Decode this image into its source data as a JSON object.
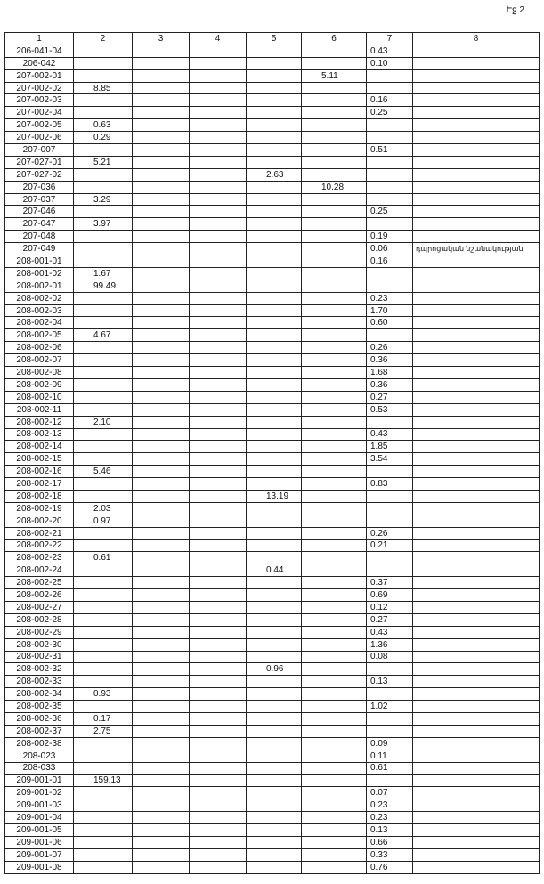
{
  "page_label": "Էջ 2",
  "headers": [
    "1",
    "2",
    "3",
    "4",
    "5",
    "6",
    "7",
    "8"
  ],
  "rows": [
    [
      "206-041-04",
      "",
      "",
      "",
      "",
      "",
      "0.43",
      ""
    ],
    [
      "206-042",
      "",
      "",
      "",
      "",
      "",
      "0.10",
      ""
    ],
    [
      "207-002-01",
      "",
      "",
      "",
      "",
      "5.11",
      "",
      ""
    ],
    [
      "207-002-02",
      "8.85",
      "",
      "",
      "",
      "",
      "",
      ""
    ],
    [
      "207-002-03",
      "",
      "",
      "",
      "",
      "",
      "0.16",
      ""
    ],
    [
      "207-002-04",
      "",
      "",
      "",
      "",
      "",
      "0.25",
      ""
    ],
    [
      "207-002-05",
      "0.63",
      "",
      "",
      "",
      "",
      "",
      ""
    ],
    [
      "207-002-06",
      "0.29",
      "",
      "",
      "",
      "",
      "",
      ""
    ],
    [
      "207-007",
      "",
      "",
      "",
      "",
      "",
      "0.51",
      ""
    ],
    [
      "207-027-01",
      "5.21",
      "",
      "",
      "",
      "",
      "",
      ""
    ],
    [
      "207-027-02",
      "",
      "",
      "",
      "2.63",
      "",
      "",
      ""
    ],
    [
      "207-036",
      "",
      "",
      "",
      "",
      "10.28",
      "",
      ""
    ],
    [
      "207-037",
      "3.29",
      "",
      "",
      "",
      "",
      "",
      ""
    ],
    [
      "207-046",
      "",
      "",
      "",
      "",
      "",
      "0.25",
      ""
    ],
    [
      "207-047",
      "3.97",
      "",
      "",
      "",
      "",
      "",
      ""
    ],
    [
      "207-048",
      "",
      "",
      "",
      "",
      "",
      "0.19",
      ""
    ],
    [
      "207-049",
      "",
      "",
      "",
      "",
      "",
      "0.06",
      "դպրոցական նշանակության"
    ],
    [
      "208-001-01",
      "",
      "",
      "",
      "",
      "",
      "0.16",
      ""
    ],
    [
      "208-001-02",
      "1.67",
      "",
      "",
      "",
      "",
      "",
      ""
    ],
    [
      "208-002-01",
      "99.49",
      "",
      "",
      "",
      "",
      "",
      ""
    ],
    [
      "208-002-02",
      "",
      "",
      "",
      "",
      "",
      "0.23",
      ""
    ],
    [
      "208-002-03",
      "",
      "",
      "",
      "",
      "",
      "1.70",
      ""
    ],
    [
      "208-002-04",
      "",
      "",
      "",
      "",
      "",
      "0.60",
      ""
    ],
    [
      "208-002-05",
      "4.67",
      "",
      "",
      "",
      "",
      "",
      ""
    ],
    [
      "208-002-06",
      "",
      "",
      "",
      "",
      "",
      "0.26",
      ""
    ],
    [
      "208-002-07",
      "",
      "",
      "",
      "",
      "",
      "0.36",
      ""
    ],
    [
      "208-002-08",
      "",
      "",
      "",
      "",
      "",
      "1.68",
      ""
    ],
    [
      "208-002-09",
      "",
      "",
      "",
      "",
      "",
      "0.36",
      ""
    ],
    [
      "208-002-10",
      "",
      "",
      "",
      "",
      "",
      "0.27",
      ""
    ],
    [
      "208-002-11",
      "",
      "",
      "",
      "",
      "",
      "0.53",
      ""
    ],
    [
      "208-002-12",
      "2.10",
      "",
      "",
      "",
      "",
      "",
      ""
    ],
    [
      "208-002-13",
      "",
      "",
      "",
      "",
      "",
      "0.43",
      ""
    ],
    [
      "208-002-14",
      "",
      "",
      "",
      "",
      "",
      "1.85",
      ""
    ],
    [
      "208-002-15",
      "",
      "",
      "",
      "",
      "",
      "3.54",
      ""
    ],
    [
      "208-002-16",
      "5.46",
      "",
      "",
      "",
      "",
      "",
      ""
    ],
    [
      "208-002-17",
      "",
      "",
      "",
      "",
      "",
      "0.83",
      ""
    ],
    [
      "208-002-18",
      "",
      "",
      "",
      "13.19",
      "",
      "",
      ""
    ],
    [
      "208-002-19",
      "2.03",
      "",
      "",
      "",
      "",
      "",
      ""
    ],
    [
      "208-002-20",
      "0.97",
      "",
      "",
      "",
      "",
      "",
      ""
    ],
    [
      "208-002-21",
      "",
      "",
      "",
      "",
      "",
      "0.26",
      ""
    ],
    [
      "208-002-22",
      "",
      "",
      "",
      "",
      "",
      "0.21",
      ""
    ],
    [
      "208-002-23",
      "0.61",
      "",
      "",
      "",
      "",
      "",
      ""
    ],
    [
      "208-002-24",
      "",
      "",
      "",
      "0.44",
      "",
      "",
      ""
    ],
    [
      "208-002-25",
      "",
      "",
      "",
      "",
      "",
      "0.37",
      ""
    ],
    [
      "208-002-26",
      "",
      "",
      "",
      "",
      "",
      "0.69",
      ""
    ],
    [
      "208-002-27",
      "",
      "",
      "",
      "",
      "",
      "0.12",
      ""
    ],
    [
      "208-002-28",
      "",
      "",
      "",
      "",
      "",
      "0.27",
      ""
    ],
    [
      "208-002-29",
      "",
      "",
      "",
      "",
      "",
      "0.43",
      ""
    ],
    [
      "208-002-30",
      "",
      "",
      "",
      "",
      "",
      "1.36",
      ""
    ],
    [
      "208-002-31",
      "",
      "",
      "",
      "",
      "",
      "0.08",
      ""
    ],
    [
      "208-002-32",
      "",
      "",
      "",
      "0.96",
      "",
      "",
      ""
    ],
    [
      "208-002-33",
      "",
      "",
      "",
      "",
      "",
      "0.13",
      ""
    ],
    [
      "208-002-34",
      "0.93",
      "",
      "",
      "",
      "",
      "",
      ""
    ],
    [
      "208-002-35",
      "",
      "",
      "",
      "",
      "",
      "1.02",
      ""
    ],
    [
      "208-002-36",
      "0.17",
      "",
      "",
      "",
      "",
      "",
      ""
    ],
    [
      "208-002-37",
      "2.75",
      "",
      "",
      "",
      "",
      "",
      ""
    ],
    [
      "208-002-38",
      "",
      "",
      "",
      "",
      "",
      "0.09",
      ""
    ],
    [
      "208-023",
      "",
      "",
      "",
      "",
      "",
      "0.11",
      ""
    ],
    [
      "208-033",
      "",
      "",
      "",
      "",
      "",
      "0.61",
      ""
    ],
    [
      "209-001-01",
      "159.13",
      "",
      "",
      "",
      "",
      "",
      ""
    ],
    [
      "209-001-02",
      "",
      "",
      "",
      "",
      "",
      "0.07",
      ""
    ],
    [
      "209-001-03",
      "",
      "",
      "",
      "",
      "",
      "0.23",
      ""
    ],
    [
      "209-001-04",
      "",
      "",
      "",
      "",
      "",
      "0.23",
      ""
    ],
    [
      "209-001-05",
      "",
      "",
      "",
      "",
      "",
      "0.13",
      ""
    ],
    [
      "209-001-06",
      "",
      "",
      "",
      "",
      "",
      "0.66",
      ""
    ],
    [
      "209-001-07",
      "",
      "",
      "",
      "",
      "",
      "0.33",
      ""
    ],
    [
      "209-001-08",
      "",
      "",
      "",
      "",
      "",
      "0.76",
      ""
    ]
  ]
}
